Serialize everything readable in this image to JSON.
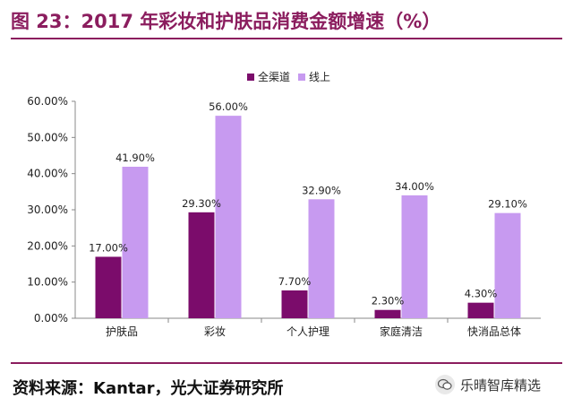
{
  "header": {
    "title": "图 23：2017 年彩妆和护肤品消费金额增速（%）"
  },
  "footer": {
    "source": "资料来源：Kantar，光大证券研究所",
    "watermark": "乐晴智库精选"
  },
  "colors": {
    "title": "#8b1d5e",
    "series_all": "#7b0c6b",
    "series_online": "#c79af0"
  },
  "chart_data": {
    "type": "bar",
    "title": "",
    "xlabel": "",
    "ylabel": "",
    "categories": [
      "护肤品",
      "彩妆",
      "个人护理",
      "家庭清洁",
      "快消品总体"
    ],
    "series": [
      {
        "name": "全渠道",
        "values": [
          17.0,
          29.3,
          7.7,
          2.3,
          4.3
        ],
        "labels": [
          "17.00%",
          "29.30%",
          "7.70%",
          "2.30%",
          "4.30%"
        ]
      },
      {
        "name": "线上",
        "values": [
          41.9,
          56.0,
          32.9,
          34.0,
          29.1
        ],
        "labels": [
          "41.90%",
          "56.00%",
          "32.90%",
          "34.00%",
          "29.10%"
        ]
      }
    ],
    "ylim": [
      0,
      60
    ],
    "yticks": [
      "0.00%",
      "10.00%",
      "20.00%",
      "30.00%",
      "40.00%",
      "50.00%",
      "60.00%"
    ],
    "grid": false,
    "legend": "top-center"
  }
}
